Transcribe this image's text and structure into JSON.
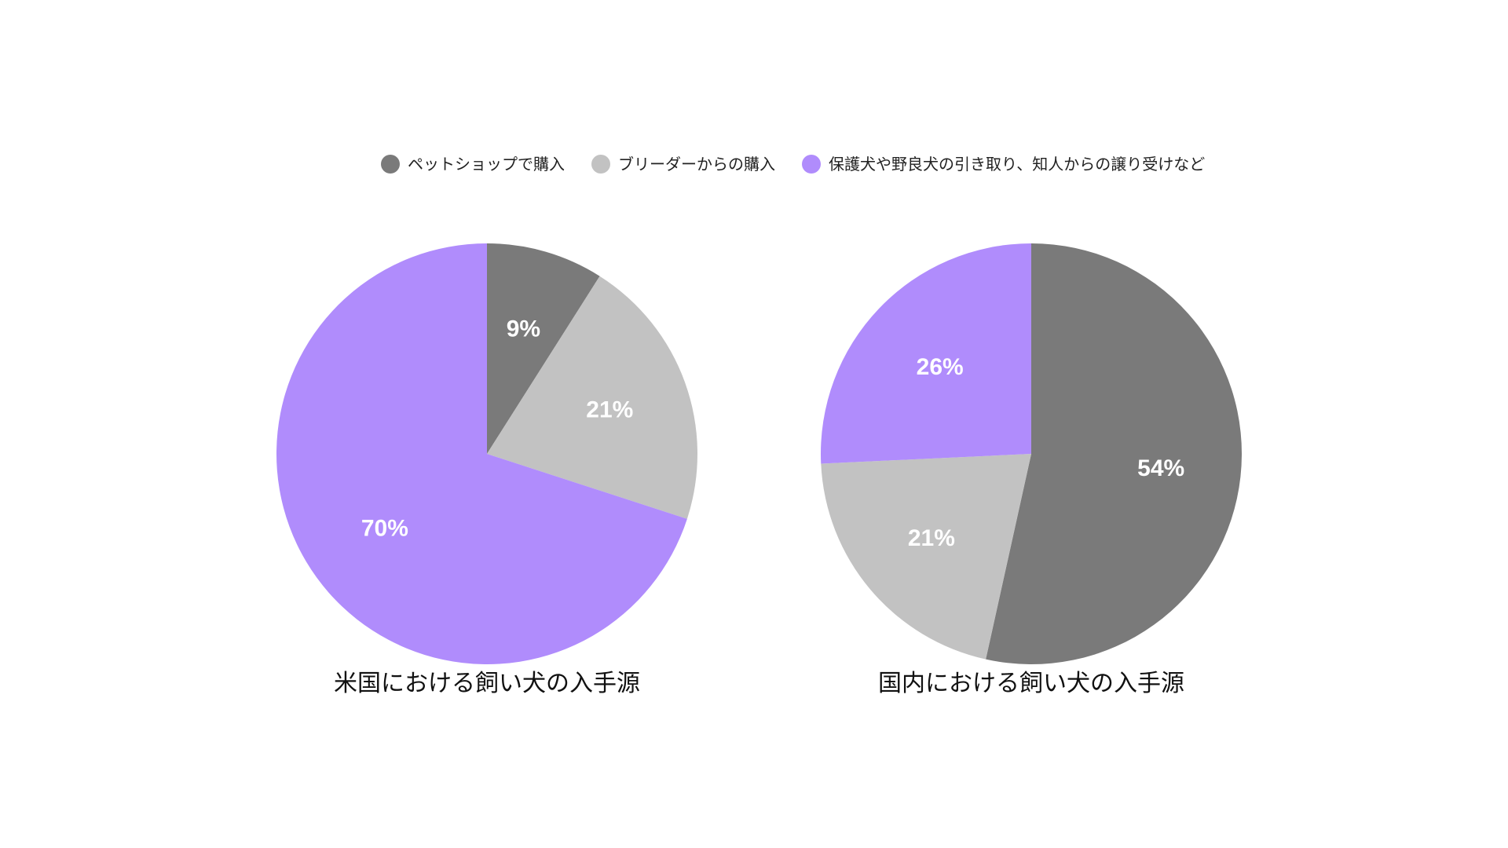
{
  "legend": {
    "items": [
      {
        "label": "ペットショップで購入",
        "color": "#7a7a7a"
      },
      {
        "label": "ブリーダーからの購入",
        "color": "#c2c2c2"
      },
      {
        "label": "保護犬や野良犬の引き取り、知人からの譲り受けなど",
        "color": "#b08cfc"
      }
    ]
  },
  "chart_data": [
    {
      "type": "pie",
      "title": "米国における飼い犬の入手源",
      "categories": [
        "ペットショップで購入",
        "ブリーダーからの購入",
        "保護犬や野良犬の引き取り、知人からの譲り受けなど"
      ],
      "values": [
        9,
        21,
        70
      ],
      "data_labels": [
        "9%",
        "21%",
        "70%"
      ],
      "colors": [
        "#7a7a7a",
        "#c2c2c2",
        "#b08cfc"
      ],
      "start": "top",
      "direction": "clockwise",
      "legend_position": "top"
    },
    {
      "type": "pie",
      "title": "国内における飼い犬の入手源",
      "categories": [
        "ペットショップで購入",
        "ブリーダーからの購入",
        "保護犬や野良犬の引き取り、知人からの譲り受けなど"
      ],
      "values": [
        54,
        21,
        26
      ],
      "data_labels": [
        "54%",
        "21%",
        "26%"
      ],
      "colors": [
        "#7a7a7a",
        "#c2c2c2",
        "#b08cfc"
      ],
      "start": "top",
      "direction": "clockwise",
      "legend_position": "top"
    }
  ]
}
